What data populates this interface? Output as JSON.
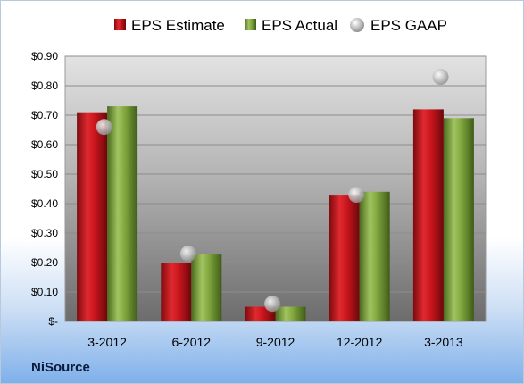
{
  "company": "NiSource",
  "chart_data": {
    "type": "bar",
    "categories": [
      "3-2012",
      "6-2012",
      "9-2012",
      "12-2012",
      "3-2013"
    ],
    "series": [
      {
        "name": "EPS Estimate",
        "kind": "bar",
        "color": "#c8141c",
        "values": [
          0.71,
          0.2,
          0.05,
          0.43,
          0.72
        ]
      },
      {
        "name": "EPS Actual",
        "kind": "bar",
        "color": "#7ea33c",
        "values": [
          0.73,
          0.23,
          0.05,
          0.44,
          0.69
        ]
      },
      {
        "name": "EPS GAAP",
        "kind": "marker",
        "color": "#b0b0b0",
        "values": [
          0.66,
          0.23,
          0.06,
          0.43,
          0.83
        ]
      }
    ],
    "yticks": [
      "$-",
      "$0.10",
      "$0.20",
      "$0.30",
      "$0.40",
      "$0.50",
      "$0.60",
      "$0.70",
      "$0.80",
      "$0.90"
    ],
    "ylim": [
      0,
      0.9
    ],
    "grid": true,
    "legend_position": "top"
  }
}
